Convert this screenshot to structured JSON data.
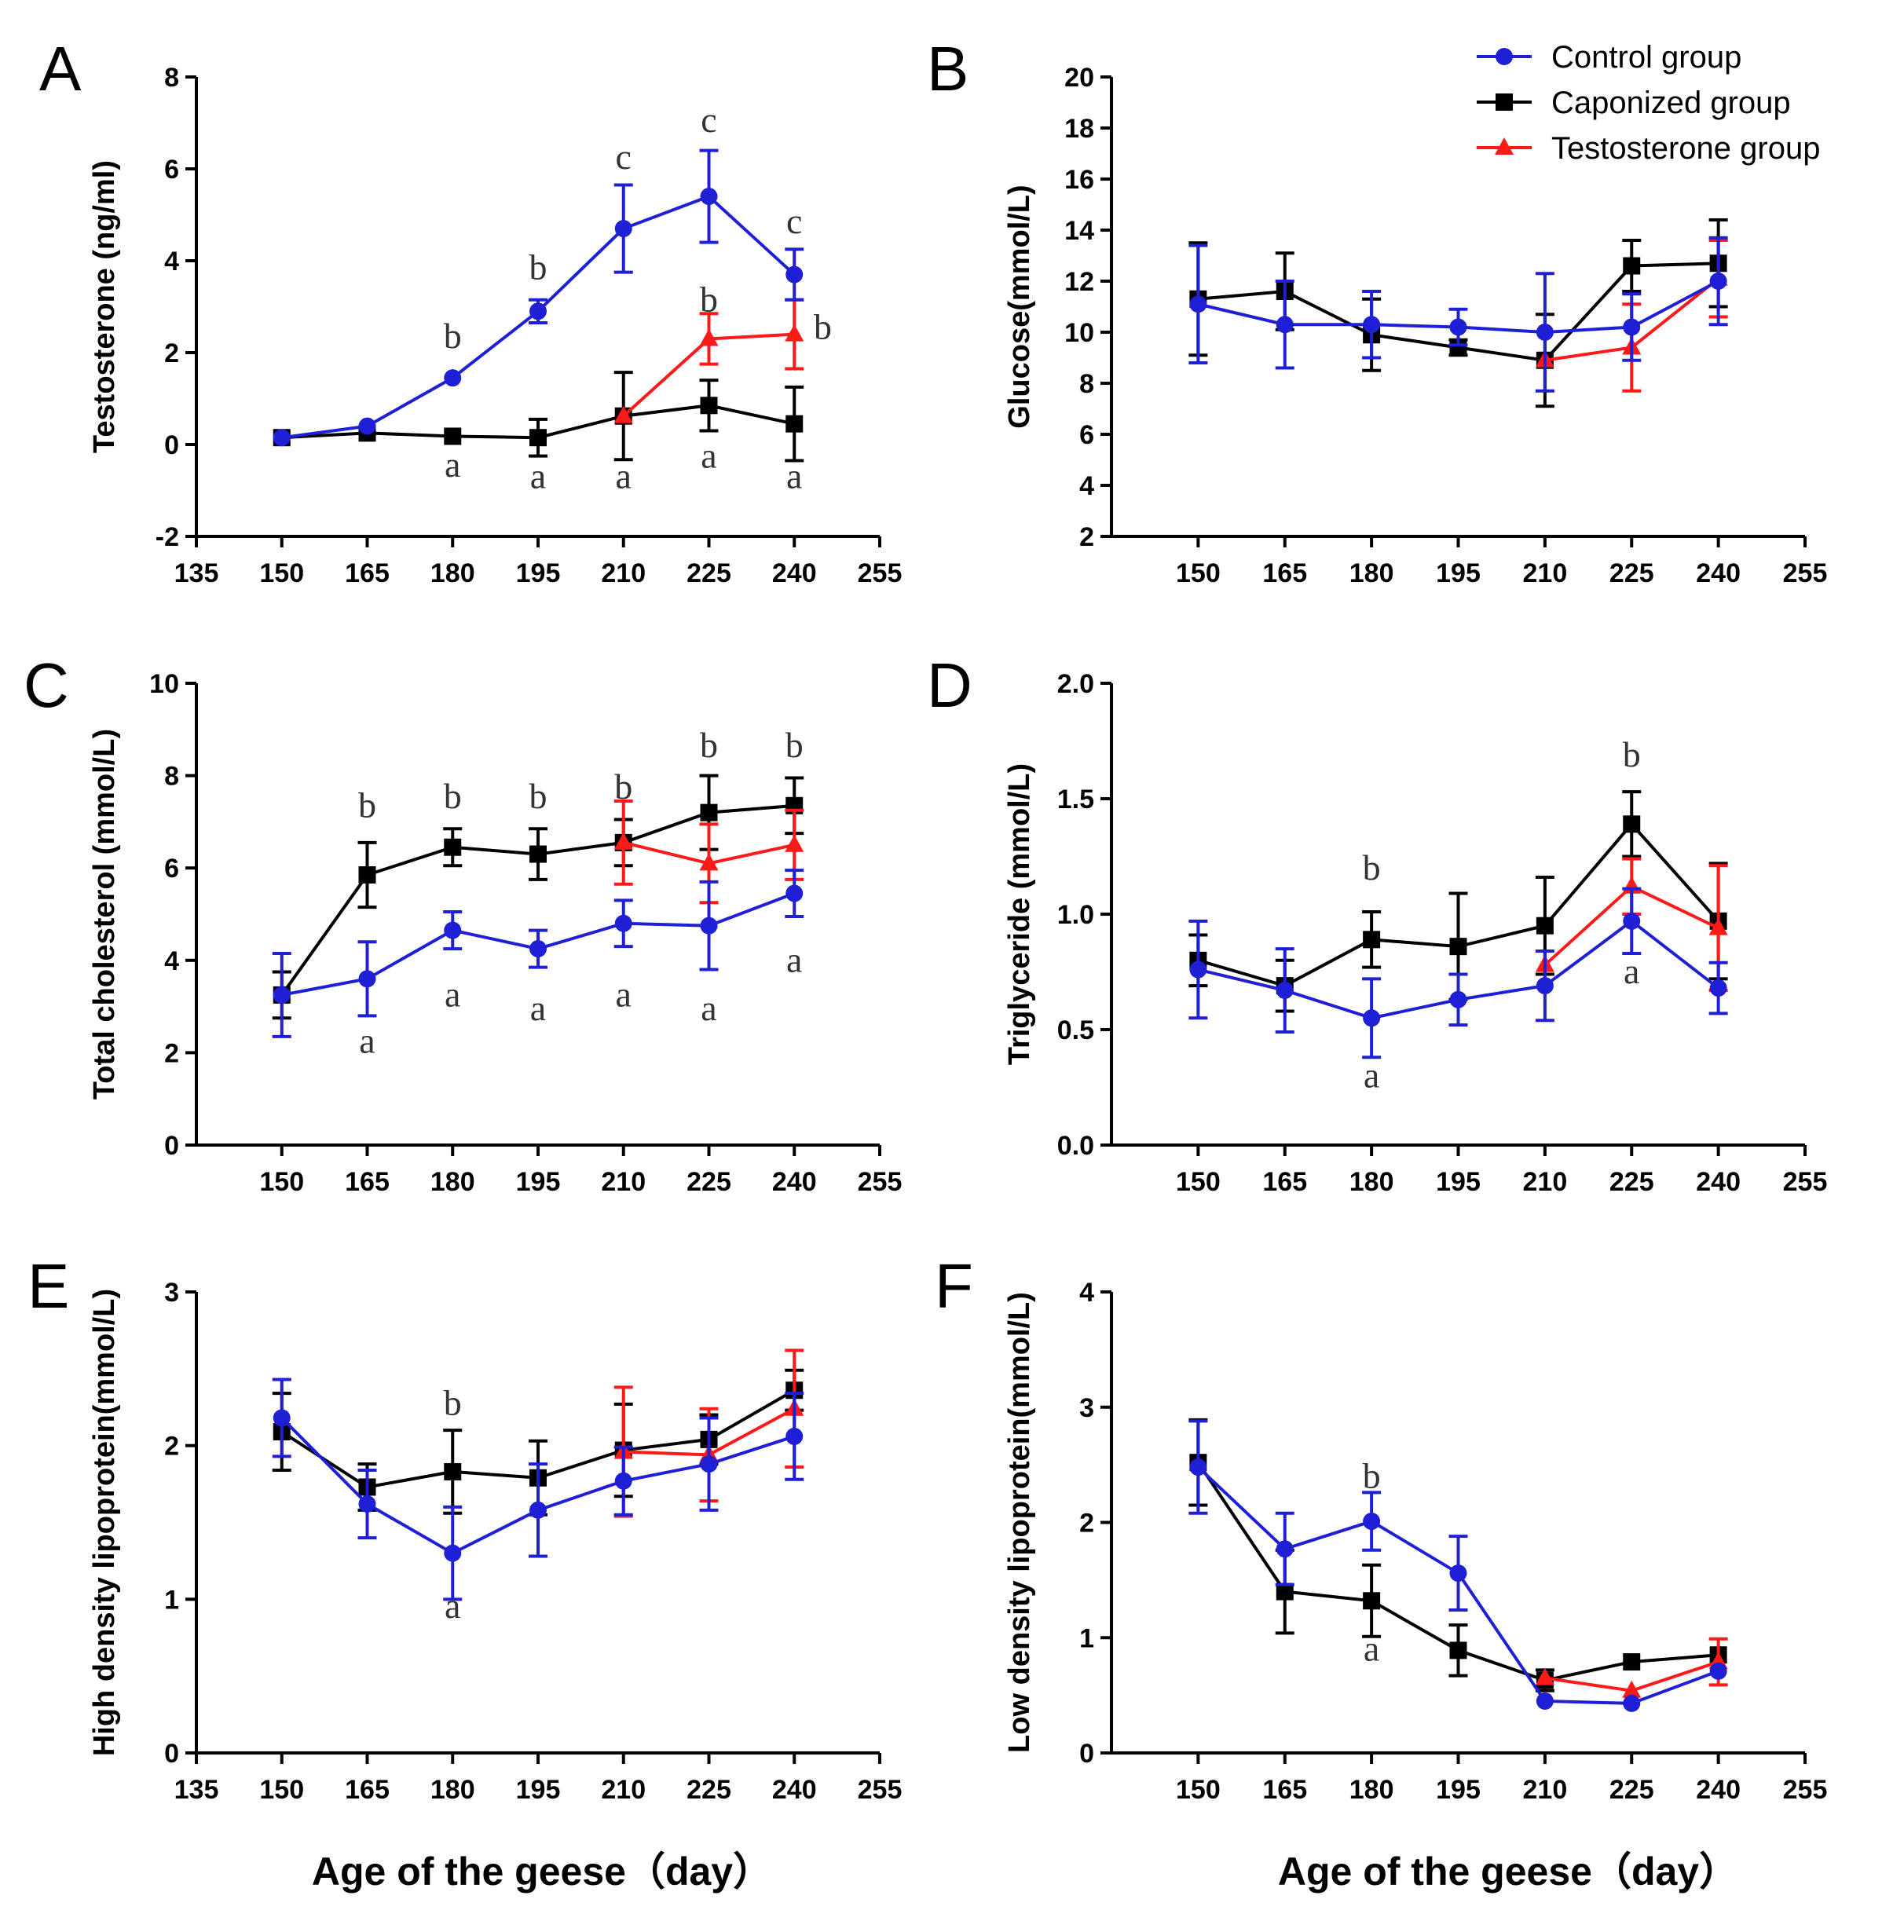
{
  "figure": {
    "xlabel": "Age of the geese（day）",
    "legend": [
      {
        "name": "Control group",
        "color": "#1f1fd6",
        "marker": "circle"
      },
      {
        "name": "Caponized group",
        "color": "#000000",
        "marker": "square"
      },
      {
        "name": "Testosterone group",
        "color": "#ff1a1a",
        "marker": "triangle"
      }
    ]
  },
  "chart_data": [
    {
      "panel": "A",
      "type": "line",
      "ylabel": "Testosterone (ng/ml)",
      "ylim": [
        -2,
        8
      ],
      "yticks": [
        -2,
        0,
        2,
        4,
        6,
        8
      ],
      "xlim": [
        135,
        255
      ],
      "xticks": [
        135,
        150,
        165,
        180,
        195,
        210,
        225,
        240,
        255
      ],
      "series": [
        {
          "name": "Control group",
          "x": [
            150,
            165,
            180,
            195,
            210,
            225,
            240
          ],
          "y": [
            0.15,
            0.4,
            1.45,
            2.9,
            4.7,
            5.4,
            3.7
          ],
          "err": [
            0,
            0,
            0,
            0.25,
            0.95,
            1.0,
            0.55
          ]
        },
        {
          "name": "Caponized group",
          "x": [
            150,
            165,
            180,
            195,
            210,
            225,
            240
          ],
          "y": [
            0.15,
            0.25,
            0.18,
            0.15,
            0.62,
            0.85,
            0.45
          ],
          "err": [
            0,
            0,
            0,
            0.4,
            0.95,
            0.55,
            0.8
          ]
        },
        {
          "name": "Testosterone group",
          "x": [
            210,
            225,
            240
          ],
          "y": [
            0.62,
            2.3,
            2.4
          ],
          "err": [
            0,
            0.55,
            0.75
          ]
        }
      ],
      "annotations": [
        {
          "x": 180,
          "y": 2.1,
          "text": "b"
        },
        {
          "x": 195,
          "y": 3.6,
          "text": "b"
        },
        {
          "x": 210,
          "y": 6.0,
          "text": "c"
        },
        {
          "x": 225,
          "y": 6.8,
          "text": "c"
        },
        {
          "x": 240,
          "y": 4.6,
          "text": "c"
        },
        {
          "x": 225,
          "y": 2.9,
          "text": "b"
        },
        {
          "x": 245,
          "y": 2.3,
          "text": "b"
        },
        {
          "x": 180,
          "y": -0.7,
          "text": "a"
        },
        {
          "x": 195,
          "y": -0.95,
          "text": "a"
        },
        {
          "x": 210,
          "y": -0.95,
          "text": "a"
        },
        {
          "x": 225,
          "y": -0.5,
          "text": "a"
        },
        {
          "x": 240,
          "y": -0.95,
          "text": "a"
        }
      ]
    },
    {
      "panel": "B",
      "type": "line",
      "ylabel": "Glucose(mmol/L)",
      "ylim": [
        2,
        20
      ],
      "yticks": [
        2,
        4,
        6,
        8,
        10,
        12,
        14,
        16,
        18,
        20
      ],
      "xlim": [
        135,
        255
      ],
      "xticks": [
        150,
        165,
        180,
        195,
        210,
        225,
        240,
        255
      ],
      "series": [
        {
          "name": "Control group",
          "x": [
            150,
            165,
            180,
            195,
            210,
            225,
            240
          ],
          "y": [
            11.1,
            10.3,
            10.3,
            10.2,
            10.0,
            10.2,
            12.0
          ],
          "err": [
            2.3,
            1.7,
            1.3,
            0.7,
            2.3,
            1.3,
            1.7
          ]
        },
        {
          "name": "Caponized group",
          "x": [
            150,
            165,
            180,
            195,
            210,
            225,
            240
          ],
          "y": [
            11.3,
            11.6,
            9.9,
            9.4,
            8.9,
            12.6,
            12.7
          ],
          "err": [
            2.2,
            1.5,
            1.4,
            0.3,
            1.8,
            1.0,
            1.7
          ]
        },
        {
          "name": "Testosterone group",
          "x": [
            210,
            225,
            240
          ],
          "y": [
            8.9,
            9.4,
            12.1
          ],
          "err": [
            0,
            1.7,
            1.5
          ]
        }
      ],
      "annotations": []
    },
    {
      "panel": "C",
      "type": "line",
      "ylabel": "Total cholesterol (mmol/L)",
      "ylim": [
        0,
        10
      ],
      "yticks": [
        0,
        2,
        4,
        6,
        8,
        10
      ],
      "xlim": [
        135,
        255
      ],
      "xticks": [
        150,
        165,
        180,
        195,
        210,
        225,
        240,
        255
      ],
      "series": [
        {
          "name": "Control group",
          "x": [
            150,
            165,
            180,
            195,
            210,
            225,
            240
          ],
          "y": [
            3.25,
            3.6,
            4.65,
            4.25,
            4.8,
            4.75,
            5.45
          ],
          "err": [
            0.9,
            0.8,
            0.4,
            0.4,
            0.5,
            0.95,
            0.5
          ]
        },
        {
          "name": "Caponized group",
          "x": [
            150,
            165,
            180,
            195,
            210,
            225,
            240
          ],
          "y": [
            3.25,
            5.85,
            6.45,
            6.3,
            6.55,
            7.2,
            7.35
          ],
          "err": [
            0.5,
            0.7,
            0.4,
            0.55,
            0.5,
            0.8,
            0.6
          ]
        },
        {
          "name": "Testosterone group",
          "x": [
            210,
            225,
            240
          ],
          "y": [
            6.55,
            6.1,
            6.5
          ],
          "err": [
            0.9,
            0.85,
            0.75
          ]
        }
      ],
      "annotations": [
        {
          "x": 165,
          "y": 7.1,
          "text": "b"
        },
        {
          "x": 180,
          "y": 7.3,
          "text": "b"
        },
        {
          "x": 195,
          "y": 7.3,
          "text": "b"
        },
        {
          "x": 210,
          "y": 7.5,
          "text": "b"
        },
        {
          "x": 225,
          "y": 8.4,
          "text": "b"
        },
        {
          "x": 240,
          "y": 8.4,
          "text": "b"
        },
        {
          "x": 165,
          "y": 2.0,
          "text": "a"
        },
        {
          "x": 180,
          "y": 3.0,
          "text": "a"
        },
        {
          "x": 195,
          "y": 2.7,
          "text": "a"
        },
        {
          "x": 210,
          "y": 3.0,
          "text": "a"
        },
        {
          "x": 225,
          "y": 2.7,
          "text": "a"
        },
        {
          "x": 240,
          "y": 3.75,
          "text": "a"
        }
      ]
    },
    {
      "panel": "D",
      "type": "line",
      "ylabel": "Triglyceride (mmol/L)",
      "ylim": [
        0,
        2
      ],
      "yticks": [
        0.0,
        0.5,
        1.0,
        1.5,
        2.0
      ],
      "xlim": [
        135,
        255
      ],
      "xticks": [
        150,
        165,
        180,
        195,
        210,
        225,
        240,
        255
      ],
      "series": [
        {
          "name": "Control group",
          "x": [
            150,
            165,
            180,
            195,
            210,
            225,
            240
          ],
          "y": [
            0.76,
            0.67,
            0.55,
            0.63,
            0.69,
            0.97,
            0.68
          ],
          "err": [
            0.21,
            0.18,
            0.17,
            0.11,
            0.15,
            0.14,
            0.11
          ]
        },
        {
          "name": "Caponized group",
          "x": [
            150,
            165,
            180,
            195,
            210,
            225,
            240
          ],
          "y": [
            0.8,
            0.69,
            0.89,
            0.86,
            0.95,
            1.39,
            0.97
          ],
          "err": [
            0.11,
            0.11,
            0.12,
            0.23,
            0.21,
            0.14,
            0.25
          ]
        },
        {
          "name": "Testosterone group",
          "x": [
            210,
            225,
            240
          ],
          "y": [
            0.78,
            1.12,
            0.94
          ],
          "err": [
            0,
            0.12,
            0.27
          ]
        }
      ],
      "annotations": [
        {
          "x": 180,
          "y": 1.15,
          "text": "b"
        },
        {
          "x": 225,
          "y": 1.64,
          "text": "b"
        },
        {
          "x": 180,
          "y": 0.25,
          "text": "a"
        },
        {
          "x": 225,
          "y": 0.7,
          "text": "a"
        }
      ]
    },
    {
      "panel": "E",
      "type": "line",
      "ylabel": "High density lipoprotein(mmol/L)",
      "ylim": [
        0,
        3
      ],
      "yticks": [
        0,
        1,
        2,
        3
      ],
      "xlim": [
        135,
        255
      ],
      "xticks": [
        135,
        150,
        165,
        180,
        195,
        210,
        225,
        240,
        255
      ],
      "series": [
        {
          "name": "Control group",
          "x": [
            150,
            165,
            180,
            195,
            210,
            225,
            240
          ],
          "y": [
            2.18,
            1.62,
            1.3,
            1.58,
            1.77,
            1.88,
            2.06
          ],
          "err": [
            0.25,
            0.22,
            0.3,
            0.3,
            0.22,
            0.3,
            0.28
          ]
        },
        {
          "name": "Caponized group",
          "x": [
            150,
            165,
            180,
            195,
            210,
            225,
            240
          ],
          "y": [
            2.09,
            1.73,
            1.83,
            1.79,
            1.97,
            2.04,
            2.36
          ],
          "err": [
            0.25,
            0.15,
            0.27,
            0.24,
            0.3,
            0.16,
            0.13
          ]
        },
        {
          "name": "Testosterone group",
          "x": [
            210,
            225,
            240
          ],
          "y": [
            1.96,
            1.94,
            2.24
          ],
          "err": [
            0.42,
            0.3,
            0.38
          ]
        }
      ],
      "annotations": [
        {
          "x": 180,
          "y": 2.2,
          "text": "b"
        },
        {
          "x": 180,
          "y": 0.88,
          "text": "a"
        }
      ]
    },
    {
      "panel": "F",
      "type": "line",
      "ylabel": "Low density lipoprotein(mmol/L)",
      "ylim": [
        0,
        4
      ],
      "yticks": [
        0,
        1,
        2,
        3,
        4
      ],
      "xlim": [
        135,
        255
      ],
      "xticks": [
        150,
        165,
        180,
        195,
        210,
        225,
        240,
        255
      ],
      "series": [
        {
          "name": "Control group",
          "x": [
            150,
            165,
            180,
            195,
            210,
            225,
            240
          ],
          "y": [
            2.48,
            1.77,
            2.01,
            1.56,
            0.45,
            0.43,
            0.71
          ],
          "err": [
            0.4,
            0.31,
            0.25,
            0.32,
            0,
            0,
            0
          ]
        },
        {
          "name": "Caponized group",
          "x": [
            150,
            165,
            180,
            195,
            210,
            225,
            240
          ],
          "y": [
            2.52,
            1.4,
            1.32,
            0.89,
            0.63,
            0.79,
            0.85
          ],
          "err": [
            0.37,
            0.36,
            0.31,
            0.22,
            0.09,
            0,
            0
          ]
        },
        {
          "name": "Testosterone group",
          "x": [
            210,
            225,
            240
          ],
          "y": [
            0.65,
            0.54,
            0.79
          ],
          "err": [
            0,
            0,
            0.2
          ]
        }
      ],
      "annotations": [
        {
          "x": 180,
          "y": 2.3,
          "text": "b"
        },
        {
          "x": 180,
          "y": 0.8,
          "text": "a"
        }
      ]
    }
  ]
}
